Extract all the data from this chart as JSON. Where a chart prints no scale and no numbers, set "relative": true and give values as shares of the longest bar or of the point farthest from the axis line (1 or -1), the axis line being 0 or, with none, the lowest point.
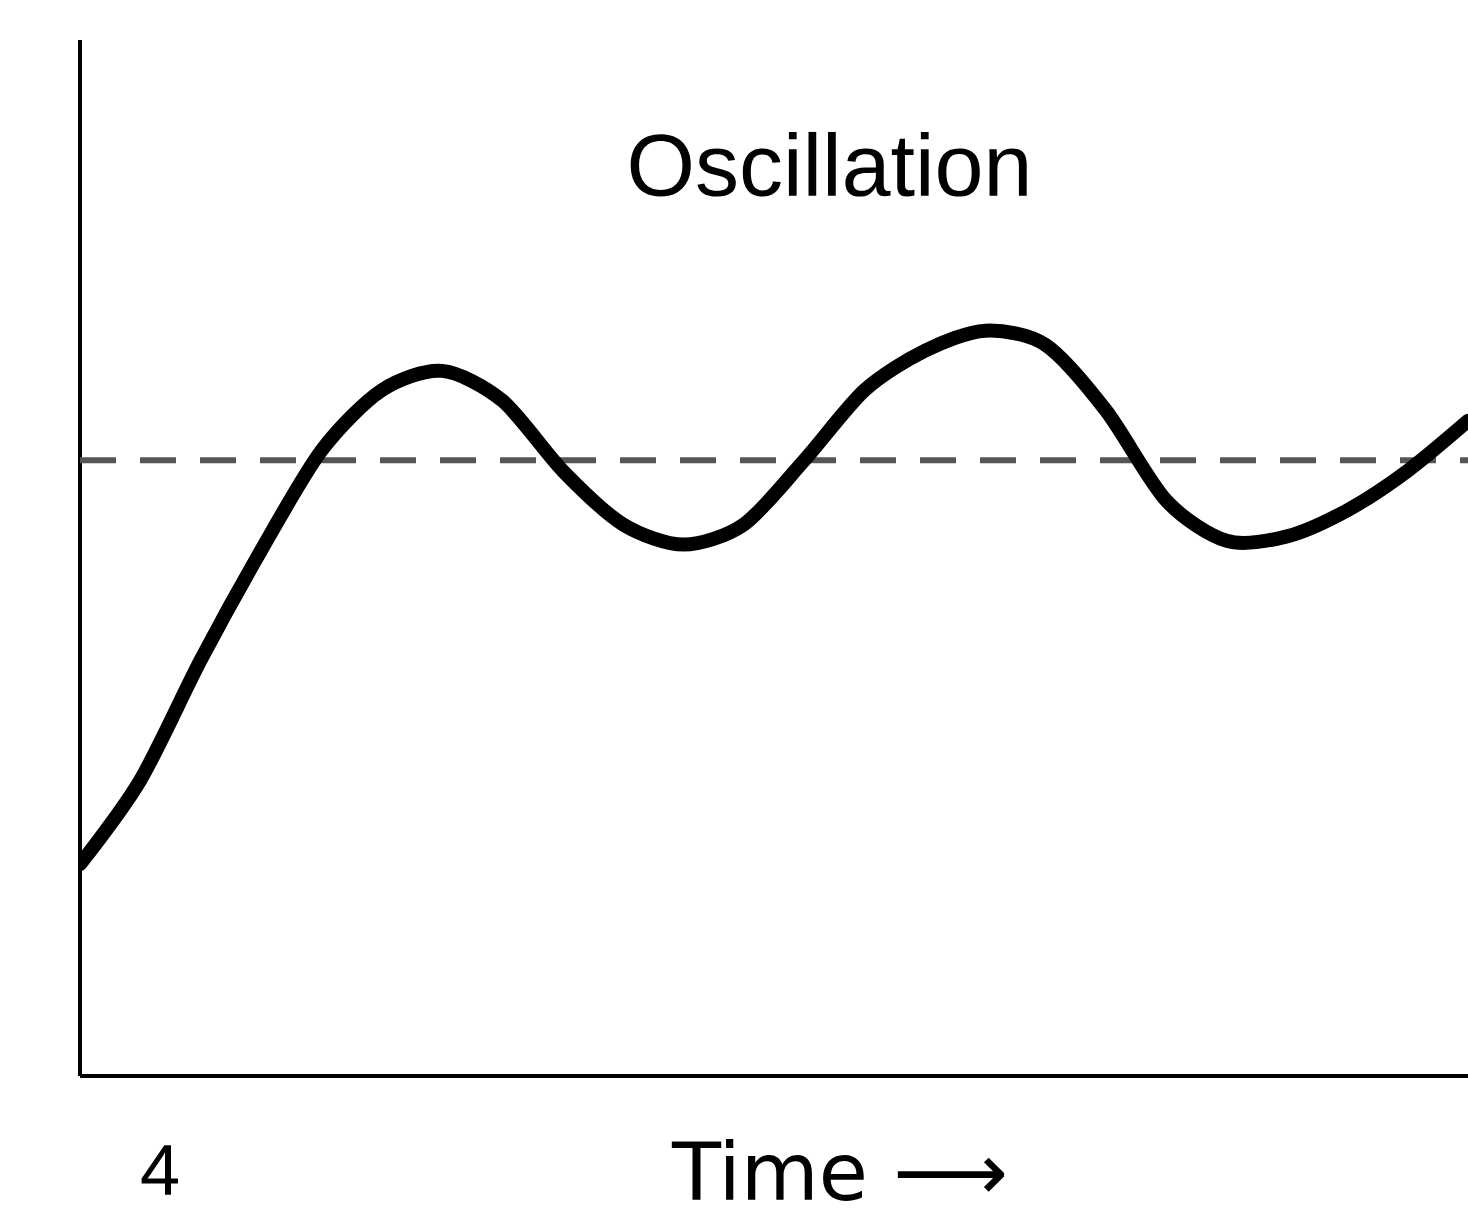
{
  "chart_data": {
    "type": "line",
    "title": "Oscillation",
    "xlabel": "Time ⟶",
    "relative": true,
    "color": "#000000",
    "categories": [
      null,
      null,
      null,
      null,
      null,
      null,
      null,
      null,
      null,
      null,
      null,
      null,
      null,
      null,
      null,
      null,
      null,
      null,
      null,
      null,
      null,
      null,
      null,
      null
    ],
    "values": [
      0.284,
      0.397,
      0.558,
      0.705,
      0.839,
      0.92,
      0.946,
      0.906,
      0.812,
      0.74,
      0.713,
      0.74,
      0.826,
      0.92,
      0.973,
      1,
      0.981,
      0.893,
      0.772,
      0.718,
      0.724,
      0.759,
      0.812,
      0.879
    ],
    "ref_lines": [
      {
        "axis": "y",
        "value": 0.826,
        "color": "#555555",
        "line_style": "dashed"
      }
    ],
    "annotations": [
      "4"
    ]
  }
}
